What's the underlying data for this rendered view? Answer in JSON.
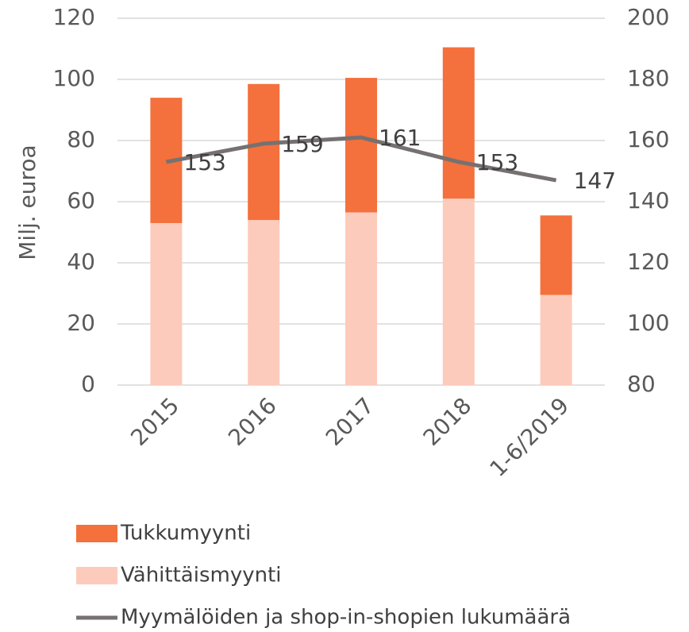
{
  "chart_data": {
    "type": "bar",
    "stacked": true,
    "y_label": "Milj. euroa",
    "categories": [
      "2015",
      "2016",
      "2017",
      "2018",
      "1-6/2019"
    ],
    "series": [
      {
        "name": "Vähittäismyynti",
        "color": "#fdcbbb",
        "values": [
          53,
          54,
          56.5,
          61,
          29.5
        ]
      },
      {
        "name": "Tukkumyynti",
        "color": "#f4703c",
        "values": [
          41,
          44.5,
          44,
          49.5,
          26
        ]
      },
      {
        "name": "Myymälöiden ja shop-in-shopien lukumäärä",
        "type": "line",
        "axis": "y2",
        "color": "#767171",
        "data_labels": true,
        "values": [
          153,
          159,
          161,
          153,
          147
        ]
      }
    ],
    "ylim": [
      0,
      120
    ],
    "yticks": [
      0,
      20,
      40,
      60,
      80,
      100,
      120
    ],
    "y2lim": [
      80,
      200
    ],
    "y2ticks": [
      80,
      100,
      120,
      140,
      160,
      180,
      200
    ],
    "grid": true,
    "legend": "bottom"
  }
}
